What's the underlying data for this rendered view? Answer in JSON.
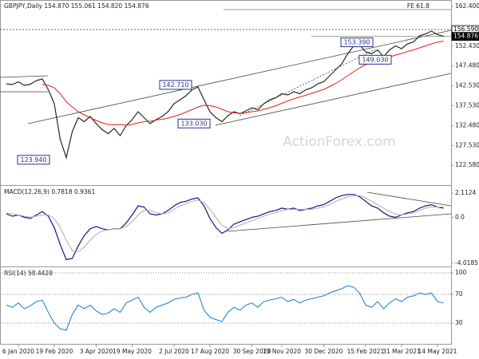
{
  "chart_data": [
    {
      "type": "line",
      "title": "GBPJPY,Daily 154.870 155.061 154.820 154.876",
      "ylim": [
        117.6,
        164.0
      ],
      "yticks": [
        {
          "value": 162.4,
          "label": "162.400"
        },
        {
          "value": 152.43,
          "label": "152.430"
        },
        {
          "value": 147.48,
          "label": "147.480"
        },
        {
          "value": 142.53,
          "label": "142.530"
        },
        {
          "value": 137.53,
          "label": "137.530"
        },
        {
          "value": 132.48,
          "label": "132.480"
        },
        {
          "value": 127.53,
          "label": "127.530"
        },
        {
          "value": 122.58,
          "label": "122.580"
        }
      ],
      "categories": [
        null,
        null,
        "6 Jan 2020",
        null,
        null,
        null,
        null,
        null,
        "19 Feb 2020",
        null,
        null,
        null,
        null,
        null,
        null,
        "3 Apr 2020",
        null,
        null,
        null,
        null,
        null,
        "19 May 2020",
        null,
        null,
        null,
        null,
        null,
        null,
        "2 Jul 2020",
        null,
        null,
        null,
        null,
        null,
        "17 Aug 2020",
        null,
        null,
        null,
        null,
        null,
        null,
        "30 Sep 2020",
        null,
        null,
        null,
        null,
        "13 Nov 2020",
        null,
        null,
        null,
        null,
        null,
        null,
        "30 Dec 2020",
        null,
        null,
        null,
        null,
        null,
        null,
        "15 Feb 2021",
        null,
        null,
        null,
        null,
        null,
        "31 Mar 2021",
        null,
        null,
        null,
        null,
        null,
        "14 May 2021",
        null
      ],
      "series": [
        {
          "name": "Close",
          "color": "#1f2a1f",
          "values": [
            143.0,
            142.8,
            143.5,
            142.6,
            142.9,
            143.8,
            144.2,
            141.5,
            138.0,
            129.0,
            124.5,
            131.0,
            134.5,
            133.5,
            134.8,
            133.0,
            131.5,
            130.5,
            131.8,
            130.0,
            132.5,
            134.0,
            136.0,
            134.5,
            133.0,
            134.0,
            134.8,
            136.0,
            138.0,
            139.0,
            140.0,
            141.5,
            142.2,
            139.0,
            136.0,
            134.5,
            133.5,
            135.0,
            136.0,
            135.5,
            136.2,
            137.0,
            136.5,
            138.0,
            139.0,
            139.5,
            140.5,
            140.2,
            141.0,
            140.5,
            141.5,
            142.0,
            143.0,
            143.5,
            145.0,
            146.5,
            148.0,
            150.5,
            152.5,
            152.8,
            151.0,
            150.5,
            151.5,
            149.8,
            151.5,
            152.5,
            151.8,
            153.0,
            153.5,
            155.0,
            155.5,
            156.2,
            155.3,
            154.9
          ]
        },
        {
          "name": "MA",
          "color": "#e0201b",
          "values": [
            null,
            null,
            null,
            null,
            null,
            null,
            142.8,
            142.6,
            142.0,
            140.5,
            138.5,
            137.2,
            136.0,
            135.2,
            134.5,
            133.8,
            133.2,
            132.8,
            132.7,
            132.8,
            132.6,
            132.8,
            133.2,
            133.5,
            133.6,
            133.9,
            134.1,
            134.4,
            134.8,
            135.3,
            135.9,
            136.5,
            137.2,
            137.6,
            137.5,
            137.2,
            136.6,
            136.0,
            135.7,
            135.6,
            135.7,
            136.0,
            136.2,
            136.6,
            137.0,
            137.5,
            138.1,
            138.7,
            139.2,
            139.7,
            140.1,
            140.6,
            141.1,
            141.6,
            142.3,
            143.1,
            144.0,
            145.0,
            146.0,
            147.0,
            147.8,
            148.4,
            149.0,
            149.3,
            149.7,
            150.2,
            150.6,
            151.1,
            151.5,
            152.0,
            152.5,
            153.0,
            153.4,
            153.7
          ]
        }
      ],
      "annotations": [
        {
          "label": "153.390",
          "value": 153.39
        },
        {
          "label": "149.030",
          "value": 149.03
        },
        {
          "label": "142.710",
          "value": 142.71
        },
        {
          "label": "133.030",
          "value": 133.03
        },
        {
          "label": "123.940",
          "value": 123.94
        }
      ],
      "level_labels": [
        {
          "label": "156.590",
          "value": 156.59
        },
        {
          "label": "154.876",
          "value": 154.876
        }
      ],
      "fe_label": "FE 61.8",
      "watermark": "ActionForex.com",
      "grid": false
    },
    {
      "type": "line",
      "title": "MACD(12,26,9) 0.7818 0.9361",
      "ylim": [
        -4.3,
        2.75
      ],
      "yticks": [
        2.1124,
        {
          "value": 0,
          "label": "0.0"
        },
        -4.0185
      ],
      "series": [
        {
          "name": "MACD",
          "color": "#16168a",
          "values": [
            0.3,
            0.1,
            0.2,
            0.0,
            -0.1,
            0.2,
            0.5,
            0.1,
            -0.9,
            -2.4,
            -3.7,
            -3.6,
            -2.5,
            -1.6,
            -1.0,
            -0.8,
            -1.0,
            -1.1,
            -1.0,
            -1.0,
            -0.5,
            0.2,
            1.0,
            0.9,
            0.3,
            0.2,
            0.3,
            0.6,
            1.0,
            1.3,
            1.4,
            1.6,
            1.7,
            1.0,
            -0.1,
            -0.9,
            -1.4,
            -1.1,
            -0.6,
            -0.4,
            -0.2,
            0.0,
            0.1,
            0.3,
            0.5,
            0.6,
            0.8,
            0.7,
            0.8,
            0.6,
            0.7,
            0.8,
            1.0,
            1.1,
            1.4,
            1.7,
            1.9,
            2.0,
            2.0,
            1.8,
            1.4,
            1.0,
            0.8,
            0.4,
            0.1,
            0.0,
            0.2,
            0.4,
            0.5,
            0.8,
            1.0,
            1.1,
            0.9,
            0.8
          ]
        },
        {
          "name": "Signal",
          "color": "#b8a8a8",
          "values": [
            0.4,
            0.3,
            0.2,
            0.1,
            0.0,
            0.1,
            0.2,
            0.2,
            -0.1,
            -0.9,
            -2.0,
            -2.9,
            -3.0,
            -2.6,
            -2.0,
            -1.5,
            -1.2,
            -1.1,
            -1.0,
            -1.0,
            -0.8,
            -0.4,
            0.2,
            0.6,
            0.6,
            0.4,
            0.3,
            0.4,
            0.7,
            1.0,
            1.2,
            1.4,
            1.5,
            1.3,
            0.7,
            0.0,
            -0.7,
            -1.0,
            -0.9,
            -0.7,
            -0.5,
            -0.3,
            -0.1,
            0.1,
            0.3,
            0.4,
            0.6,
            0.7,
            0.7,
            0.7,
            0.7,
            0.7,
            0.8,
            0.9,
            1.1,
            1.4,
            1.6,
            1.8,
            1.9,
            1.9,
            1.7,
            1.4,
            1.1,
            0.8,
            0.5,
            0.3,
            0.2,
            0.3,
            0.4,
            0.6,
            0.8,
            0.9,
            0.9,
            0.9
          ]
        }
      ],
      "grid": false
    },
    {
      "type": "line",
      "title": "RSI(14) 58.4428",
      "ylim": [
        0,
        107.8
      ],
      "yticks": [
        100,
        70,
        30
      ],
      "series": [
        {
          "name": "RSI",
          "color": "#3a8fd6",
          "values": [
            55,
            52,
            58,
            50,
            54,
            60,
            62,
            45,
            30,
            22,
            20,
            42,
            55,
            50,
            55,
            47,
            42,
            44,
            50,
            45,
            58,
            62,
            66,
            52,
            45,
            52,
            55,
            58,
            63,
            65,
            66,
            70,
            72,
            48,
            38,
            35,
            32,
            45,
            52,
            48,
            55,
            58,
            52,
            60,
            62,
            64,
            66,
            60,
            63,
            58,
            62,
            64,
            66,
            68,
            72,
            75,
            78,
            82,
            80,
            72,
            55,
            52,
            60,
            50,
            58,
            64,
            60,
            66,
            68,
            72,
            70,
            72,
            60,
            58
          ]
        }
      ],
      "grid": true
    }
  ]
}
